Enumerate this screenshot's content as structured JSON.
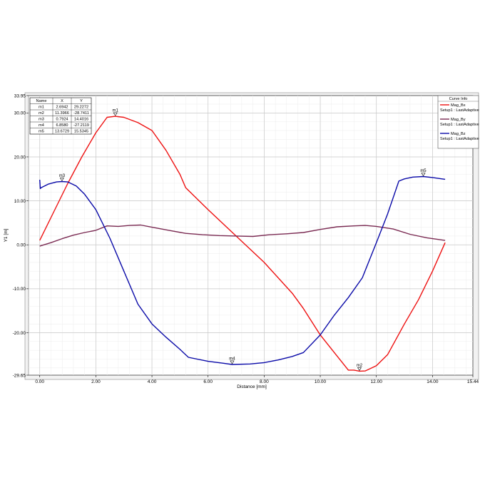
{
  "chart_data": {
    "type": "line",
    "xlabel": "Distance [mm]",
    "ylabel": "Y1 [m]",
    "xlim": [
      -0.4,
      15.44
    ],
    "ylim": [
      -29.65,
      33.95
    ],
    "x_ticks": [
      "0.00",
      "2.00",
      "4.00",
      "6.00",
      "8.00",
      "10.00",
      "12.00",
      "14.00",
      "15.44"
    ],
    "x_tick_values": [
      0,
      2,
      4,
      6,
      8,
      10,
      12,
      14,
      15.44
    ],
    "y_ticks": [
      "33.95",
      "30.00",
      "20.00",
      "10.00",
      "0.00",
      "-10.00",
      "-20.00",
      "-29.65"
    ],
    "y_tick_values": [
      33.95,
      30,
      20,
      10,
      0,
      -10,
      -20,
      -29.65
    ],
    "grid": true,
    "legend": {
      "title": "Curve Info",
      "position": "top-right",
      "entries": [
        {
          "name": "Mag_Bx",
          "setup": "Setup1 : LastAdaptive",
          "color": "#ee1111"
        },
        {
          "name": "Mag_By",
          "setup": "Setup1 : LastAdaptive",
          "color": "#7a2a52"
        },
        {
          "name": "Mag_Bz",
          "setup": "Setup1 : LastAdaptive",
          "color": "#0a0aa8"
        }
      ]
    },
    "series": [
      {
        "name": "Mag_Bx",
        "color": "#ee1111",
        "x": [
          0,
          0.5,
          1.0,
          1.5,
          2.0,
          2.4,
          2.69,
          3.0,
          3.5,
          4.0,
          4.5,
          5.0,
          5.2,
          6.0,
          7.0,
          8.0,
          9.0,
          9.4,
          10.0,
          10.5,
          11.0,
          11.2,
          11.4,
          11.6,
          12.0,
          12.4,
          13.0,
          13.5,
          14.0,
          14.45
        ],
        "y": [
          1.0,
          7.5,
          14.0,
          20.0,
          25.5,
          29.0,
          29.23,
          29.0,
          27.8,
          26.0,
          21.5,
          16.0,
          13.0,
          8.0,
          2.0,
          -4.0,
          -11.0,
          -14.5,
          -20.5,
          -24.5,
          -28.5,
          -28.5,
          -28.74,
          -28.7,
          -27.5,
          -25.0,
          -18.0,
          -12.5,
          -6.0,
          0.5
        ]
      },
      {
        "name": "Mag_By",
        "color": "#7a2a52",
        "x": [
          0,
          0.4,
          0.8,
          1.2,
          1.6,
          2.0,
          2.4,
          2.8,
          3.2,
          3.6,
          4.0,
          4.6,
          5.2,
          5.8,
          6.4,
          7.0,
          7.6,
          8.2,
          8.8,
          9.4,
          10.0,
          10.6,
          11.2,
          11.6,
          12.0,
          12.6,
          13.2,
          13.8,
          14.45
        ],
        "y": [
          -0.3,
          0.5,
          1.4,
          2.2,
          2.8,
          3.3,
          4.3,
          4.2,
          4.4,
          4.5,
          4.0,
          3.3,
          2.6,
          2.3,
          2.1,
          2.0,
          1.9,
          2.3,
          2.5,
          2.8,
          3.5,
          4.1,
          4.3,
          4.4,
          4.2,
          3.6,
          2.4,
          1.6,
          1.0
        ]
      },
      {
        "name": "Mag_Bz",
        "color": "#0a0aa8",
        "x": [
          0,
          0.02,
          0.05,
          0.3,
          0.6,
          0.79,
          1.0,
          1.3,
          1.6,
          2.0,
          2.5,
          3.0,
          3.5,
          4.0,
          4.5,
          5.0,
          5.3,
          6.0,
          6.5,
          6.86,
          7.5,
          8.0,
          8.5,
          9.0,
          9.4,
          10.0,
          10.5,
          11.0,
          11.5,
          12.0,
          12.4,
          12.8,
          13.0,
          13.3,
          13.67,
          14.0,
          14.45
        ],
        "y": [
          14.8,
          12.8,
          13.0,
          13.8,
          14.3,
          14.4,
          14.3,
          13.4,
          11.5,
          8.0,
          1.5,
          -6.0,
          -13.5,
          -18.0,
          -21.0,
          -23.8,
          -25.6,
          -26.5,
          -26.9,
          -27.21,
          -27.1,
          -26.8,
          -26.2,
          -25.4,
          -24.5,
          -20.5,
          -16.0,
          -12.0,
          -7.5,
          0.5,
          7.0,
          14.5,
          15.0,
          15.4,
          15.53,
          15.3,
          14.9
        ]
      }
    ],
    "markers": [
      {
        "name": "m1",
        "x": "2.6942",
        "y": "29.2272",
        "xv": 2.6942,
        "yv": 29.2272
      },
      {
        "name": "m2",
        "x": "11.3966",
        "y": "-28.7411",
        "xv": 11.3966,
        "yv": -28.7411
      },
      {
        "name": "m3",
        "x": "0.7924",
        "y": "14.4016",
        "xv": 0.7924,
        "yv": 14.4016
      },
      {
        "name": "m4",
        "x": "6.8580",
        "y": "-27.2119",
        "xv": 6.858,
        "yv": -27.2119
      },
      {
        "name": "m5",
        "x": "13.6729",
        "y": "15.5345",
        "xv": 13.6729,
        "yv": 15.5345
      }
    ],
    "marker_table": {
      "headers": [
        "Name",
        "X",
        "Y"
      ]
    }
  }
}
